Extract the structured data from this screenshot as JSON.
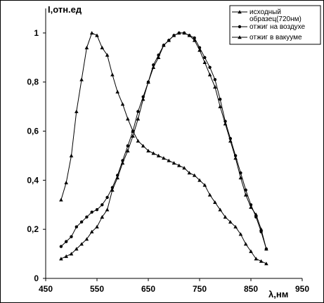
{
  "chart_data": {
    "type": "line",
    "ylabel": "I,отн.ед",
    "xlabel": "λ,нм",
    "xlim": [
      450,
      950
    ],
    "ylim": [
      0,
      1.1
    ],
    "x_ticks": [
      450,
      550,
      650,
      750,
      850,
      950
    ],
    "x_tick_labels": [
      "450",
      "550",
      "650",
      "750",
      "850",
      "950"
    ],
    "y_ticks": [
      0,
      0.2,
      0.4,
      0.6,
      0.8,
      1
    ],
    "y_tick_labels": [
      "0",
      "0,2",
      "0,4",
      "0,6",
      "0,8",
      "1"
    ],
    "grid": false,
    "legend_position": "top-right",
    "series": [
      {
        "name": "исходный образец(720нм)",
        "marker": "triangle",
        "x": [
          480,
          490,
          500,
          510,
          520,
          530,
          540,
          550,
          560,
          570,
          580,
          590,
          600,
          610,
          620,
          630,
          640,
          650,
          660,
          670,
          680,
          690,
          700,
          710,
          720,
          730,
          740,
          750,
          760,
          770,
          780,
          790,
          800,
          810,
          820,
          830,
          840,
          850,
          860,
          870,
          880
        ],
        "y": [
          0.08,
          0.09,
          0.1,
          0.12,
          0.14,
          0.16,
          0.19,
          0.21,
          0.25,
          0.28,
          0.36,
          0.41,
          0.47,
          0.52,
          0.58,
          0.65,
          0.73,
          0.8,
          0.86,
          0.9,
          0.95,
          0.97,
          0.99,
          1.0,
          1.0,
          0.99,
          0.97,
          0.93,
          0.88,
          0.83,
          0.78,
          0.7,
          0.63,
          0.56,
          0.49,
          0.41,
          0.34,
          0.29,
          0.26,
          0.2,
          0.12
        ]
      },
      {
        "name": "отжиг на воздухе",
        "marker": "circle",
        "x": [
          480,
          490,
          500,
          510,
          520,
          530,
          540,
          550,
          560,
          570,
          580,
          590,
          600,
          610,
          620,
          630,
          640,
          650,
          660,
          670,
          680,
          690,
          700,
          710,
          720,
          730,
          740,
          750,
          760,
          770,
          780,
          790,
          800,
          810,
          820,
          830,
          840,
          850,
          860,
          870,
          880
        ],
        "y": [
          0.13,
          0.15,
          0.17,
          0.21,
          0.23,
          0.25,
          0.27,
          0.28,
          0.3,
          0.33,
          0.37,
          0.42,
          0.48,
          0.54,
          0.6,
          0.68,
          0.74,
          0.8,
          0.87,
          0.91,
          0.95,
          0.97,
          0.99,
          1.0,
          1.0,
          0.99,
          0.98,
          0.94,
          0.9,
          0.86,
          0.81,
          0.73,
          0.64,
          0.57,
          0.5,
          0.43,
          0.36,
          0.3,
          0.25,
          0.19,
          0.12
        ]
      },
      {
        "name": "отжиг в вакууме",
        "marker": "triangle",
        "x": [
          480,
          490,
          500,
          510,
          520,
          530,
          540,
          550,
          560,
          570,
          580,
          590,
          600,
          610,
          620,
          630,
          640,
          650,
          660,
          670,
          680,
          690,
          700,
          710,
          720,
          730,
          740,
          750,
          760,
          770,
          780,
          790,
          800,
          810,
          820,
          830,
          840,
          850,
          860,
          870,
          880
        ],
        "y": [
          0.32,
          0.39,
          0.5,
          0.68,
          0.81,
          0.94,
          1.0,
          0.99,
          0.94,
          0.91,
          0.83,
          0.76,
          0.71,
          0.65,
          0.6,
          0.56,
          0.54,
          0.52,
          0.51,
          0.5,
          0.49,
          0.48,
          0.47,
          0.46,
          0.45,
          0.43,
          0.42,
          0.4,
          0.38,
          0.34,
          0.31,
          0.28,
          0.25,
          0.23,
          0.21,
          0.18,
          0.14,
          0.11,
          0.08,
          0.07,
          0.06
        ]
      }
    ]
  }
}
